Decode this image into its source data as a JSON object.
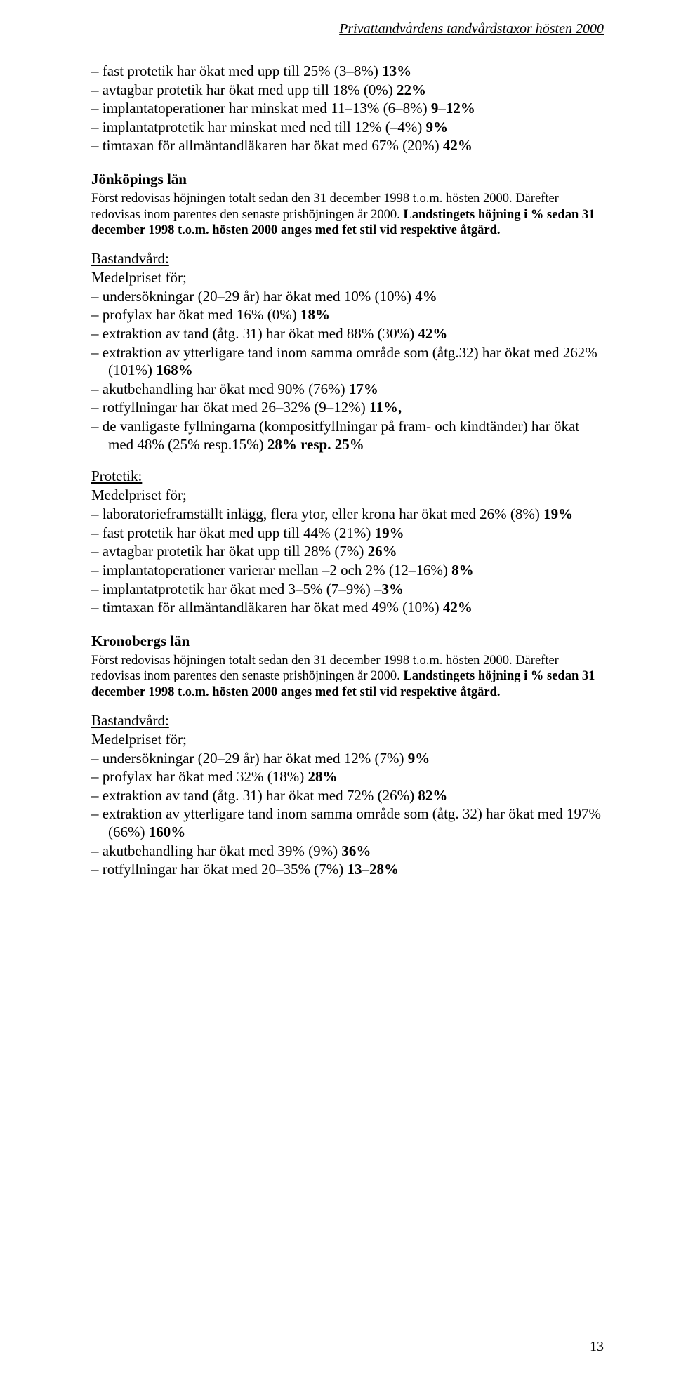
{
  "header": "Privattandvårdens tandvårdstaxor hösten 2000",
  "topList": [
    "fast protetik har ökat med upp till 25% (3–8%) <b>13%</b>",
    "avtagbar protetik har ökat med upp till 18% (0%) <b>22%</b>",
    "implantatoperationer har minskat med 11–13% (6–8%) <b>9–12%</b>",
    "implantatprotetik har minskat med ned till 12% (–4%) <b>9%</b>",
    "timtaxan för allmäntandläkaren har ökat med 67% (20%) <b>42%</b>"
  ],
  "sections": [
    {
      "title": "Jönköpings län",
      "intro": "Först redovisas höjningen totalt sedan den 31 december 1998 t.o.m. hösten 2000. Därefter redovisas inom parentes den senaste prishöjningen år 2000. <b>Landstingets höjning i % sedan 31 december 1998 t.o.m. hösten 2000 anges med fet stil vid respektive åtgärd.</b>",
      "groups": [
        {
          "heading": "Bastandvård:",
          "lead": "Medelpriset för;",
          "items": [
            "undersökningar (20–29 år) har ökat med 10% (10%) <b>4%</b>",
            "profylax har ökat med 16% (0%) <b>18%</b>",
            "extraktion av tand (åtg. 31) har ökat med 88% (30%) <b>42%</b>",
            "extraktion av ytterligare tand inom samma område som (åtg.32) har ökat med 262% (101%) <b>168%</b>",
            "akutbehandling har ökat med 90% (76%) <b>17%</b>",
            "rotfyllningar har ökat med 26–32% (9–12%) <b>11%,</b>",
            "de vanligaste fyllningarna (kompositfyllningar på fram- och kindtänder) har ökat med 48% (25% resp.15%) <b>28% resp. 25%</b>"
          ]
        },
        {
          "heading": "Protetik:",
          "lead": "Medelpriset för;",
          "items": [
            "laboratorieframställt inlägg, flera ytor, eller krona har ökat med 26% (8%) <b>19%</b>",
            "fast protetik har ökat med upp till 44% (21%) <b>19%</b>",
            "avtagbar protetik har ökat upp till 28% (7%) <b>26%</b>",
            "implantatoperationer varierar mellan –2 och 2% (12–16%) <b>8%</b>",
            "implantatprotetik har ökat med 3–5% (7–9%) –<b>3%</b>",
            "timtaxan för allmäntandläkaren har ökat med 49% (10%) <b>42%</b>"
          ]
        }
      ]
    },
    {
      "title": "Kronobergs län",
      "intro": "Först redovisas höjningen totalt sedan den 31 december 1998 t.o.m. hösten 2000. Därefter redovisas inom parentes den senaste prishöjningen år 2000. <b>Landstingets höjning i % sedan 31 december 1998 t.o.m. hösten 2000 anges med fet stil vid respektive åtgärd.</b>",
      "groups": [
        {
          "heading": "Bastandvård:",
          "lead": "Medelpriset för;",
          "items": [
            "undersökningar (20–29 år) har ökat med 12% (7%) <b>9%</b>",
            "profylax har ökat med 32% (18%) <b>28%</b>",
            "extraktion av tand (åtg. 31) har ökat med 72% (26%) <b>82%</b>",
            "extraktion av ytterligare tand inom samma område som (åtg. 32) har ökat med 197% (66%) <b>160%</b>",
            "akutbehandling har ökat med 39% (9%) <b>36%</b>",
            "rotfyllningar har ökat med 20–35% (7%) <b>13</b>–<b>28%</b>"
          ]
        }
      ]
    }
  ],
  "pageNumber": "13"
}
